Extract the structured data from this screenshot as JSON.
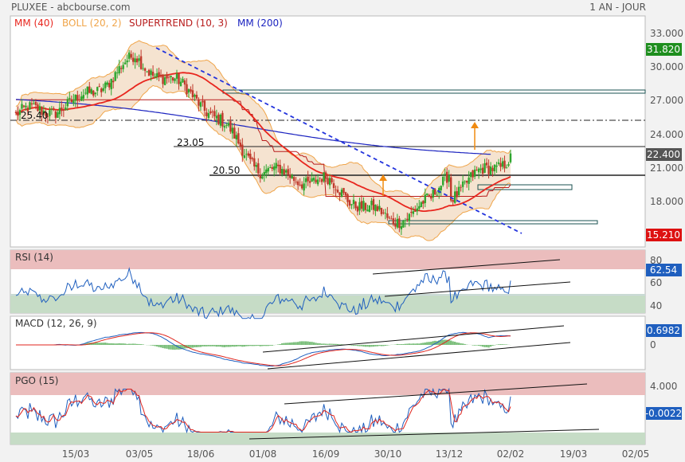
{
  "header": {
    "title": "PLUXEE - abcbourse.com",
    "period": "1 AN - JOUR"
  },
  "legend": [
    {
      "text": "MM (40)",
      "color": "#e8261e"
    },
    {
      "text": "BOLL (20, 2)",
      "color": "#f0a54a"
    },
    {
      "text": "SUPERTREND (10, 3)",
      "color": "#b81c1c"
    },
    {
      "text": "MM (200)",
      "color": "#1c24c0"
    }
  ],
  "colors": {
    "up": "#2ea62e",
    "down": "#c0392b",
    "boll": "#f0a54a",
    "boll_fill": "#f3dcc4",
    "mm40": "#e8261e",
    "mm200": "#1c24c0",
    "supertrend_down": "#b81c1c",
    "supertrend_up": "#1f8f1f",
    "trendline": "#2233dd",
    "osc_blue": "#1f5fbf",
    "osc_red": "#e0261e",
    "overbought": "#ebbdbd",
    "oversold": "#c6dcc6",
    "price_badge": "#555555",
    "green_badge": "#1e8e1e",
    "red_badge": "#dd1111",
    "blue_badge": "#1f5fbf"
  },
  "x_axis": {
    "tick_labels": [
      "15/03",
      "03/05",
      "18/06",
      "01/08",
      "16/09",
      "30/10",
      "13/12",
      "02/02",
      "19/03",
      "02/05"
    ]
  },
  "price_panel": {
    "y_ticks": [
      "33.000",
      "30.000",
      "27.000",
      "24.000",
      "21.000",
      "18.000"
    ],
    "levels": [
      {
        "label": "25.40",
        "value": 25.4,
        "style": "dashdot"
      },
      {
        "label": "23.05",
        "value": 23.05,
        "style": "solid"
      },
      {
        "label": "20.50",
        "value": 20.5,
        "style": "solid"
      }
    ],
    "badges": {
      "top": "31.820",
      "last": "22.400",
      "bottom": "15.210"
    }
  },
  "rsi_panel": {
    "label": "RSI (14)",
    "y_ticks": [
      "80",
      "60",
      "40"
    ],
    "value_badge": "62.54"
  },
  "macd_panel": {
    "label": "MACD (12, 26, 9)",
    "y_ticks": [
      "0"
    ],
    "value_badge": "0.6982"
  },
  "pgo_panel": {
    "label": "PGO (15)",
    "y_ticks": [
      "4.000",
      "0"
    ],
    "value_badge": "-0.0022"
  },
  "chart_data": {
    "type": "candlestick",
    "title": "PLUXEE",
    "key_points": [
      {
        "date": "01/02/2024",
        "close": 26.0
      },
      {
        "date": "15/03/2024",
        "close": 27.0
      },
      {
        "date": "03/05/2024",
        "close": 31.0
      },
      {
        "date": "18/06/2024",
        "close": 27.5
      },
      {
        "date": "01/08/2024",
        "close": 21.0
      },
      {
        "date": "16/09/2024",
        "close": 20.0
      },
      {
        "date": "30/10/2024",
        "close": 16.5
      },
      {
        "date": "13/12/2024",
        "close": 19.0
      },
      {
        "date": "02/02/2025",
        "close": 22.4
      }
    ],
    "last_close": 22.4,
    "indicators": [
      "MM (40)",
      "BOLL (20, 2)",
      "SUPERTREND (10, 3)",
      "MM (200)",
      "RSI (14)",
      "MACD (12, 26, 9)",
      "PGO (15)"
    ],
    "price_ylim": [
      14.5,
      34.5
    ],
    "rsi_last": 62.54,
    "macd_last": 0.6982,
    "pgo_last": -0.0022
  }
}
